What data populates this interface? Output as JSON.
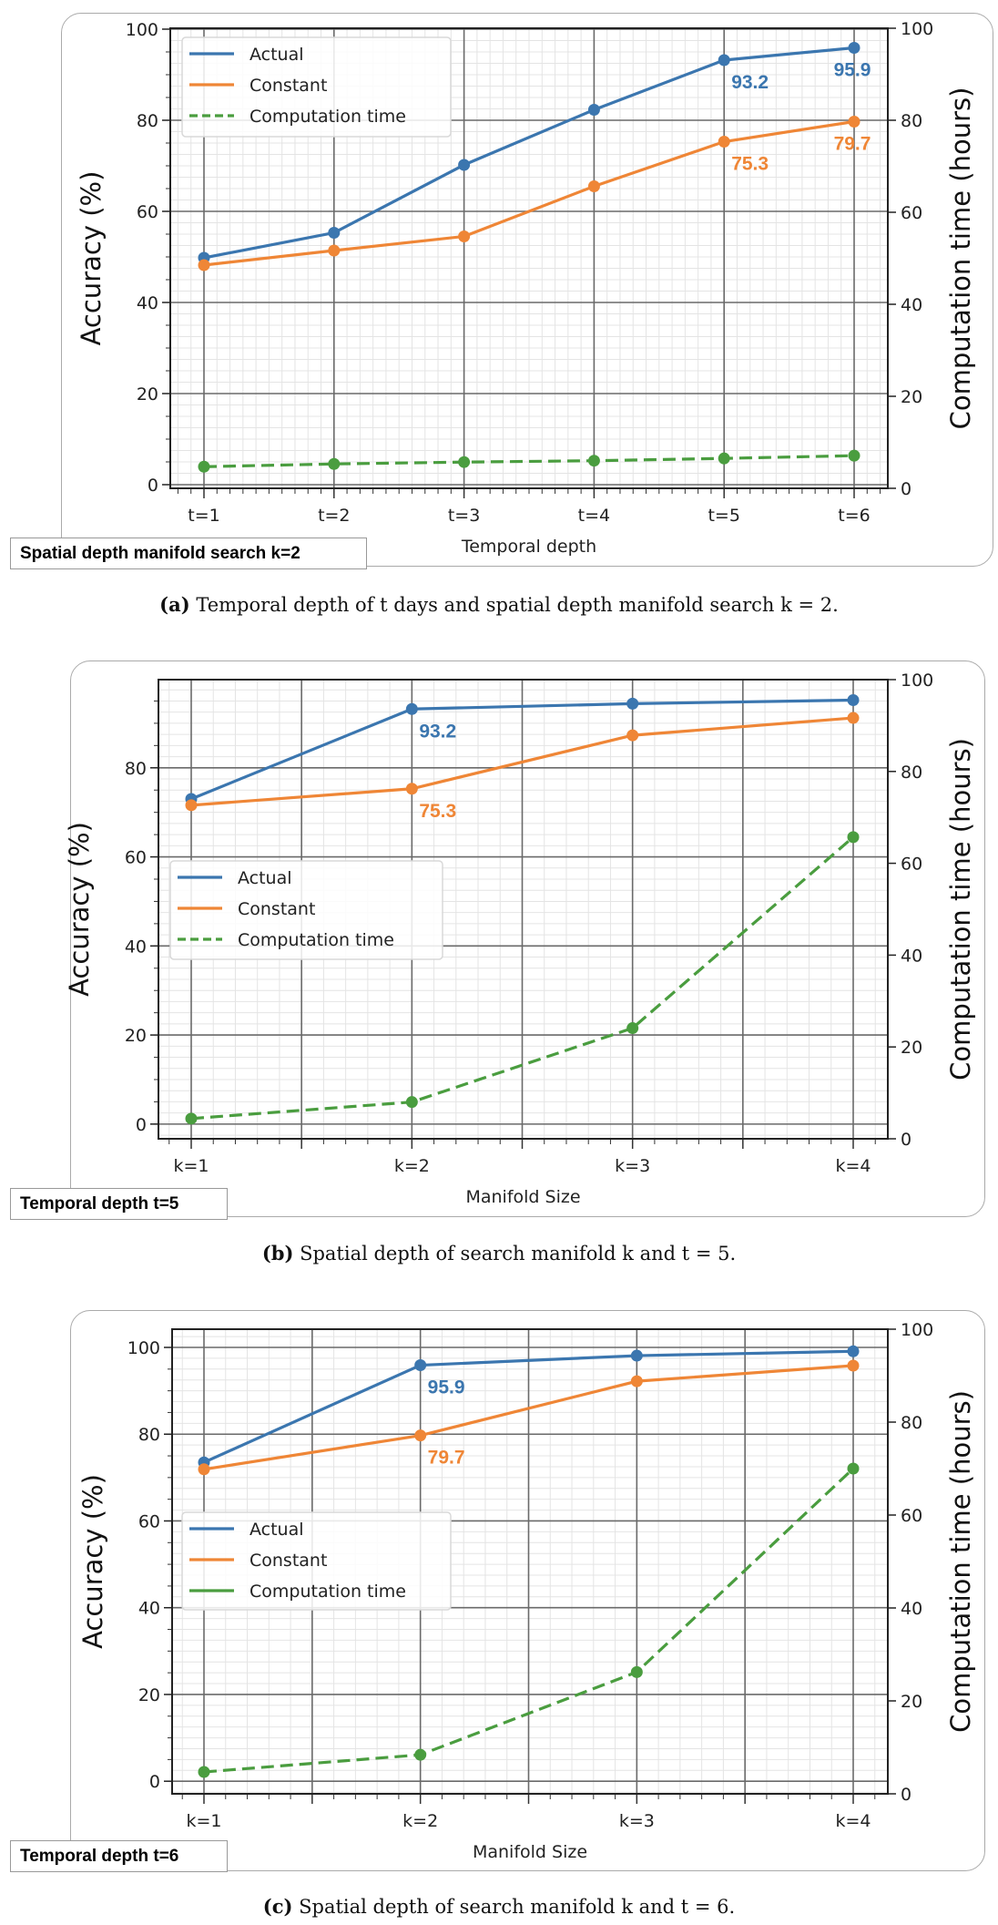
{
  "chart_data": [
    {
      "id": "a",
      "type": "line",
      "categories": [
        "t=1",
        "t=2",
        "t=3",
        "t=4",
        "t=5",
        "t=6"
      ],
      "xlabel": "Temporal depth",
      "ylabel": "Accuracy (%)",
      "y2label": "Computation time (hours)",
      "ylim": [
        -0.8,
        100.2
      ],
      "y2lim": [
        0,
        100
      ],
      "yticks": [
        0,
        20,
        40,
        60,
        80,
        100
      ],
      "y2ticks": [
        0,
        20,
        40,
        60,
        80,
        100
      ],
      "grid": true,
      "legend": {
        "placement": "top-left",
        "dashed_time": true
      },
      "series": [
        {
          "name": "Actual",
          "axis": "left",
          "color": "#3b76af",
          "values": [
            49.8,
            55.3,
            70.2,
            82.3,
            93.2,
            95.9
          ]
        },
        {
          "name": "Constant",
          "axis": "left",
          "color": "#ef8636",
          "values": [
            48.2,
            51.4,
            54.5,
            65.5,
            75.3,
            79.7
          ]
        },
        {
          "name": "Computation time",
          "axis": "right",
          "color": "#4a9d3f",
          "dashed": true,
          "values": [
            4.7,
            5.3,
            5.7,
            6.0,
            6.5,
            7.1
          ]
        }
      ],
      "annotations": [
        {
          "series": 0,
          "index": 4,
          "text": "93.2"
        },
        {
          "series": 0,
          "index": 5,
          "text": "95.9"
        },
        {
          "series": 1,
          "index": 4,
          "text": "75.3"
        },
        {
          "series": 1,
          "index": 5,
          "text": "79.7"
        }
      ],
      "tag": "Spatial depth manifold search k=2",
      "caption_letter": "(a)",
      "caption": "Temporal depth of t days and spatial depth manifold search k = 2."
    },
    {
      "id": "b",
      "type": "line",
      "categories": [
        "k=1",
        "k=2",
        "k=3",
        "k=4"
      ],
      "xlabel": "Manifold Size",
      "ylabel": "Accuracy (%)",
      "y2label": "Computation time (hours)",
      "ylim": [
        -3.3,
        99.8
      ],
      "y2lim": [
        0,
        100
      ],
      "yticks": [
        0,
        20,
        40,
        60,
        80
      ],
      "y2ticks": [
        0,
        20,
        40,
        60,
        80,
        100
      ],
      "grid": true,
      "legend": {
        "placement": "center-left",
        "dashed_time": true
      },
      "series": [
        {
          "name": "Actual",
          "axis": "left",
          "color": "#3b76af",
          "values": [
            73.0,
            93.2,
            94.4,
            95.2
          ]
        },
        {
          "name": "Constant",
          "axis": "left",
          "color": "#ef8636",
          "values": [
            71.6,
            75.3,
            87.3,
            91.2
          ]
        },
        {
          "name": "Computation time",
          "axis": "right",
          "color": "#4a9d3f",
          "dashed": true,
          "values": [
            4.4,
            8.0,
            24.1,
            65.7
          ]
        }
      ],
      "annotations": [
        {
          "series": 0,
          "index": 1,
          "text": "93.2"
        },
        {
          "series": 1,
          "index": 1,
          "text": "75.3"
        }
      ],
      "tag": "Temporal depth t=5",
      "caption_letter": "(b)",
      "caption": "Spatial depth of search manifold k and t = 5."
    },
    {
      "id": "c",
      "type": "line",
      "categories": [
        "k=1",
        "k=2",
        "k=3",
        "k=4"
      ],
      "xlabel": "Manifold Size",
      "ylabel": "Accuracy (%)",
      "y2label": "Computation time (hours)",
      "ylim": [
        -2.9,
        104.2
      ],
      "y2lim": [
        0,
        100
      ],
      "yticks": [
        0,
        20,
        40,
        60,
        80,
        100
      ],
      "y2ticks": [
        0,
        20,
        40,
        60,
        80,
        100
      ],
      "grid": true,
      "legend": {
        "placement": "center-left",
        "dashed_time": false
      },
      "series": [
        {
          "name": "Actual",
          "axis": "left",
          "color": "#3b76af",
          "values": [
            73.5,
            95.9,
            98.1,
            99.1
          ]
        },
        {
          "name": "Constant",
          "axis": "left",
          "color": "#ef8636",
          "values": [
            71.9,
            79.7,
            92.2,
            95.8
          ]
        },
        {
          "name": "Computation time",
          "axis": "right",
          "color": "#4a9d3f",
          "dashed": true,
          "values": [
            4.7,
            8.4,
            26.2,
            70.0
          ]
        }
      ],
      "annotations": [
        {
          "series": 0,
          "index": 1,
          "text": "95.9"
        },
        {
          "series": 1,
          "index": 1,
          "text": "79.7"
        }
      ],
      "tag": "Temporal depth t=6",
      "caption_letter": "(c)",
      "caption": "Spatial depth of search manifold k and t = 6."
    }
  ]
}
